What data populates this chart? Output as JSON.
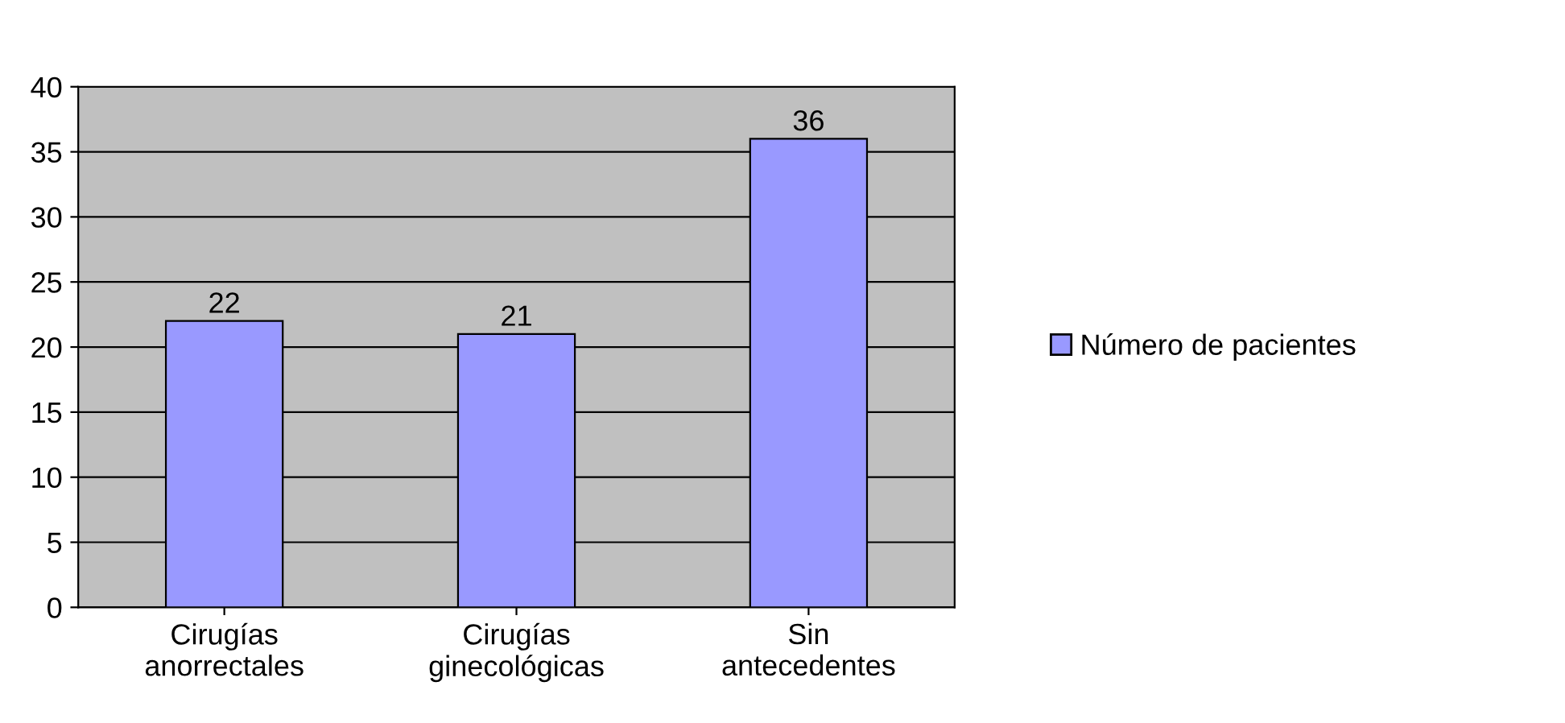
{
  "chart_data": {
    "type": "bar",
    "categories": [
      "Cirugías\nanorrectales",
      "Cirugías\nginecológicas",
      "Sin\nantecedentes"
    ],
    "series": [
      {
        "name": "Número de pacientes",
        "color": "#9999ff",
        "values": [
          22,
          21,
          36
        ]
      }
    ],
    "ylim": [
      0,
      40
    ],
    "yticks": [
      0,
      5,
      10,
      15,
      20,
      25,
      30,
      35,
      40
    ],
    "grid": "y",
    "legend": "right",
    "data_labels": true
  }
}
